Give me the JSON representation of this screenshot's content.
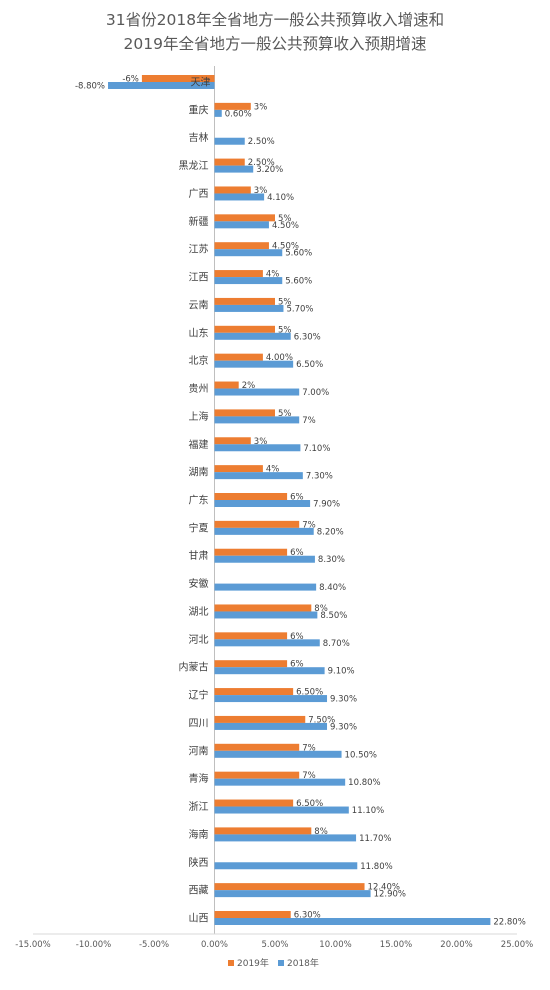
{
  "chart_data": {
    "type": "bar",
    "orientation": "horizontal",
    "title": "31省份2018年全省地方一般公共预算收入增速和2019年全省地方一般公共预算收入预期增速",
    "title_lines": [
      "31省份2018年全省地方一般公共预算收入增速和",
      "2019年全省地方一般公共预算收入预期增速"
    ],
    "categories": [
      "天津",
      "重庆",
      "吉林",
      "黑龙江",
      "广西",
      "新疆",
      "江苏",
      "江西",
      "云南",
      "山东",
      "北京",
      "贵州",
      "上海",
      "福建",
      "湖南",
      "广东",
      "宁夏",
      "甘肃",
      "安徽",
      "湖北",
      "河北",
      "内蒙古",
      "辽宁",
      "四川",
      "河南",
      "青海",
      "浙江",
      "海南",
      "陕西",
      "西藏",
      "山西"
    ],
    "series": [
      {
        "name": "2019年",
        "color": "#ED7D31",
        "values": [
          -6,
          3,
          null,
          2.5,
          3,
          5,
          4.5,
          4,
          5,
          5,
          4.0,
          2,
          5,
          3,
          4,
          6,
          7,
          6,
          null,
          8,
          6,
          6,
          6.5,
          7.5,
          7,
          7,
          6.5,
          8,
          null,
          12.4,
          6.3
        ],
        "labels": [
          "-6%",
          "3%",
          "",
          "2.50%",
          "3%",
          "5%",
          "4.50%",
          "4%",
          "5%",
          "5%",
          "4.00%",
          "2%",
          "5%",
          "3%",
          "4%",
          "6%",
          "7%",
          "6%",
          "",
          "8%",
          "6%",
          "6%",
          "6.50%",
          "7.50%",
          "7%",
          "7%",
          "6.50%",
          "8%",
          "",
          "12.40%",
          "6.30%"
        ]
      },
      {
        "name": "2018年",
        "color": "#5B9BD5",
        "values": [
          -8.8,
          0.6,
          2.5,
          3.2,
          4.1,
          4.5,
          5.6,
          5.6,
          5.7,
          6.3,
          6.5,
          7.0,
          7,
          7.1,
          7.3,
          7.9,
          8.2,
          8.3,
          8.4,
          8.5,
          8.7,
          9.1,
          9.3,
          9.3,
          10.5,
          10.8,
          11.1,
          11.7,
          11.8,
          12.9,
          22.8
        ],
        "labels": [
          "-8.80%",
          "0.60%",
          "2.50%",
          "3.20%",
          "4.10%",
          "4.50%",
          "5.60%",
          "5.60%",
          "5.70%",
          "6.30%",
          "6.50%",
          "7.00%",
          "7%",
          "7.10%",
          "7.30%",
          "7.90%",
          "8.20%",
          "8.30%",
          "8.40%",
          "8.50%",
          "8.70%",
          "9.10%",
          "9.30%",
          "9.30%",
          "10.50%",
          "10.80%",
          "11.10%",
          "11.70%",
          "11.80%",
          "12.90%",
          "22.80%"
        ]
      }
    ],
    "x_ticks": [
      -15,
      -10,
      -5,
      0,
      5,
      10,
      15,
      20,
      25
    ],
    "x_tick_labels": [
      "-15.00%",
      "-10.00%",
      "-5.00%",
      "0.00%",
      "5.00%",
      "10.00%",
      "15.00%",
      "20.00%",
      "25.00%"
    ],
    "xlim": [
      -15,
      25
    ],
    "grid": false,
    "legend_position": "bottom"
  }
}
